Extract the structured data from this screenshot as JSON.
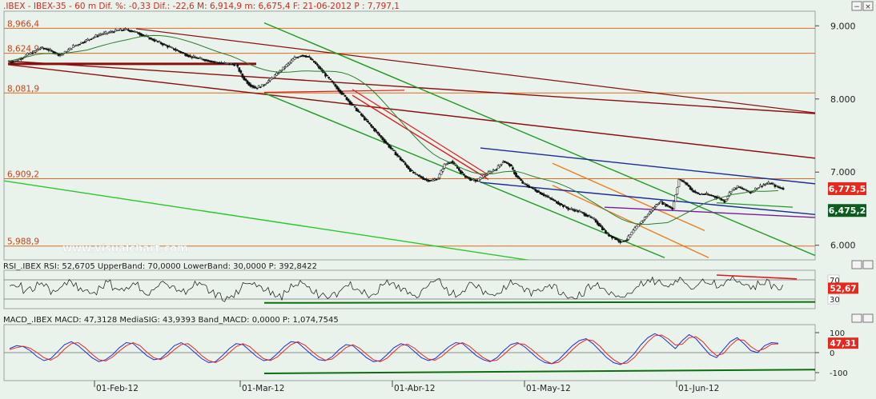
{
  "chart_data": [
    {
      "type": "candlestick",
      "panel": "price",
      "info_line": ".IBEX - IBEX-35 -  60 m Dif. %: -0,33 Dif.: -22,6 M: 6,914,9 m: 6,675,4 F: 21-06-2012 P : 7,797,1",
      "watermark": "www.visualchart.com",
      "ylim": [
        5800,
        9200
      ],
      "y_ticks": [
        {
          "value": 9000,
          "label": "9.000"
        },
        {
          "value": 8000,
          "label": "8.000"
        },
        {
          "value": 7000,
          "label": "7.000"
        },
        {
          "value": 6000,
          "label": "6.000"
        }
      ],
      "horizontal_levels": [
        {
          "value": 8966.4,
          "label": "8,966,4"
        },
        {
          "value": 8624.9,
          "label": "8,624,9"
        },
        {
          "value": 8081.9,
          "label": "8,081,9"
        },
        {
          "value": 6909.2,
          "label": "6,909,2"
        },
        {
          "value": 5988.9,
          "label": "5,988,9"
        }
      ],
      "price_tags": [
        {
          "value": 6773.5,
          "label": "6,773,5",
          "color": "#e8281c"
        },
        {
          "value": 6475.2,
          "label": "6,475,2",
          "color": "#0b5d1e"
        }
      ],
      "close_series": [
        8520,
        8560,
        8610,
        8640,
        8700,
        8680,
        8640,
        8600,
        8650,
        8720,
        8760,
        8800,
        8840,
        8880,
        8900,
        8920,
        8940,
        8950,
        8930,
        8900,
        8860,
        8820,
        8780,
        8740,
        8700,
        8660,
        8620,
        8580,
        8560,
        8540,
        8520,
        8500,
        8490,
        8480,
        8470,
        8300,
        8200,
        8150,
        8180,
        8250,
        8320,
        8400,
        8480,
        8560,
        8600,
        8580,
        8500,
        8400,
        8300,
        8200,
        8100,
        8000,
        7900,
        7800,
        7700,
        7600,
        7500,
        7400,
        7300,
        7200,
        7100,
        7000,
        6950,
        6900,
        6880,
        6920,
        7100,
        7150,
        7050,
        6950,
        6900,
        6880,
        6950,
        7000,
        7050,
        7150,
        7100,
        6950,
        6850,
        6800,
        6750,
        6700,
        6650,
        6600,
        6550,
        6500,
        6480,
        6450,
        6400,
        6350,
        6250,
        6150,
        6100,
        6050,
        6080,
        6200,
        6300,
        6400,
        6500,
        6600,
        6550,
        6500,
        6900,
        6850,
        6750,
        6700,
        6700,
        6680,
        6650,
        6600,
        6750,
        6800,
        6760,
        6720,
        6790,
        6830,
        6850,
        6800,
        6773.5
      ],
      "x_ticks": [
        "01-Feb-12",
        "01-Mar-12",
        "01-Abr-12",
        "01-May-12",
        "01-Jun-12"
      ]
    },
    {
      "type": "line",
      "panel": "rsi",
      "legend": "RSI_.IBEX RSI: 52,6705 UpperBand: 70,0000 LowerBand: 30,0000 P: 392,8422",
      "ylim": [
        10,
        90
      ],
      "upper_band": 70,
      "lower_band": 30,
      "y_labels": [
        {
          "value": 70,
          "label": "70"
        },
        {
          "value": 30,
          "label": "30"
        }
      ],
      "current": {
        "value": 52.67,
        "label": "52,67",
        "color": "#e8281c"
      },
      "series": [
        55,
        60,
        48,
        52,
        62,
        58,
        45,
        50,
        65,
        60,
        52,
        48,
        42,
        58,
        64,
        55,
        49,
        53,
        60,
        47,
        44,
        56,
        62,
        59,
        50,
        46,
        52,
        61,
        55,
        43,
        38,
        30,
        34,
        45,
        58,
        66,
        60,
        52,
        40,
        35,
        42,
        55,
        63,
        58,
        47,
        36,
        32,
        40,
        52,
        60,
        55,
        44,
        38,
        45,
        57,
        64,
        58,
        49,
        42,
        36,
        48,
        60,
        66,
        55,
        44,
        40,
        52,
        62,
        57,
        46,
        38,
        44,
        56,
        63,
        58,
        48,
        42,
        50,
        61,
        56,
        45,
        38,
        34,
        42,
        55,
        60,
        52,
        44,
        36,
        30,
        38,
        52,
        64,
        70,
        66,
        58,
        62,
        72,
        65,
        56,
        60,
        70,
        66,
        58,
        64,
        72,
        68,
        60,
        55,
        62,
        66,
        58,
        52.67
      ]
    },
    {
      "type": "line",
      "panel": "macd",
      "legend": "MACD_.IBEX MACD: 47,3128 MediaSIG: 43,9393 Band_MACD: 0,0000 P: 1,074,7545",
      "ylim": [
        -140,
        140
      ],
      "y_labels": [
        {
          "value": 100,
          "label": "100"
        },
        {
          "value": 0,
          "label": "0"
        },
        {
          "value": -100,
          "label": "-100"
        }
      ],
      "current": {
        "value": 47.31,
        "label": "47,31",
        "color": "#e8281c"
      },
      "series": [
        {
          "name": "MACD",
          "color": "#1a2fd8",
          "values": [
            20,
            35,
            30,
            10,
            -20,
            -40,
            -30,
            5,
            40,
            55,
            35,
            5,
            -25,
            -45,
            -35,
            -10,
            25,
            50,
            45,
            15,
            -15,
            -35,
            -30,
            0,
            35,
            50,
            30,
            0,
            -30,
            -50,
            -45,
            -15,
            20,
            45,
            40,
            10,
            -20,
            -40,
            -35,
            -5,
            30,
            55,
            50,
            20,
            -10,
            -35,
            -40,
            -20,
            15,
            40,
            35,
            5,
            -25,
            -45,
            -40,
            -10,
            25,
            45,
            35,
            5,
            -25,
            -40,
            -30,
            0,
            30,
            50,
            45,
            15,
            -15,
            -35,
            -45,
            -25,
            10,
            40,
            50,
            30,
            0,
            -30,
            -50,
            -55,
            -35,
            0,
            35,
            60,
            70,
            45,
            10,
            -25,
            -50,
            -60,
            -40,
            -5,
            40,
            75,
            95,
            80,
            50,
            20,
            60,
            90,
            70,
            30,
            -10,
            -25,
            15,
            55,
            75,
            45,
            10,
            0,
            35,
            50,
            47.31
          ]
        },
        {
          "name": "MediaSIG",
          "color": "#e8281c",
          "values": [
            15,
            25,
            32,
            22,
            0,
            -25,
            -38,
            -18,
            18,
            45,
            50,
            25,
            -8,
            -35,
            -42,
            -22,
            8,
            35,
            50,
            35,
            2,
            -25,
            -35,
            -15,
            15,
            40,
            45,
            18,
            -15,
            -40,
            -50,
            -32,
            0,
            30,
            45,
            30,
            -2,
            -30,
            -40,
            -22,
            10,
            40,
            55,
            38,
            8,
            -20,
            -38,
            -32,
            -5,
            25,
            40,
            22,
            -8,
            -35,
            -45,
            -28,
            5,
            35,
            42,
            22,
            -8,
            -32,
            -38,
            -18,
            12,
            38,
            50,
            32,
            2,
            -25,
            -42,
            -38,
            -10,
            22,
            45,
            42,
            18,
            -12,
            -40,
            -55,
            -48,
            -20,
            15,
            45,
            65,
            60,
            32,
            -5,
            -35,
            -55,
            -52,
            -25,
            15,
            55,
            85,
            88,
            68,
            38,
            42,
            75,
            80,
            55,
            15,
            -15,
            -5,
            35,
            65,
            62,
            30,
            8,
            20,
            42,
            43.94
          ]
        }
      ]
    }
  ]
}
